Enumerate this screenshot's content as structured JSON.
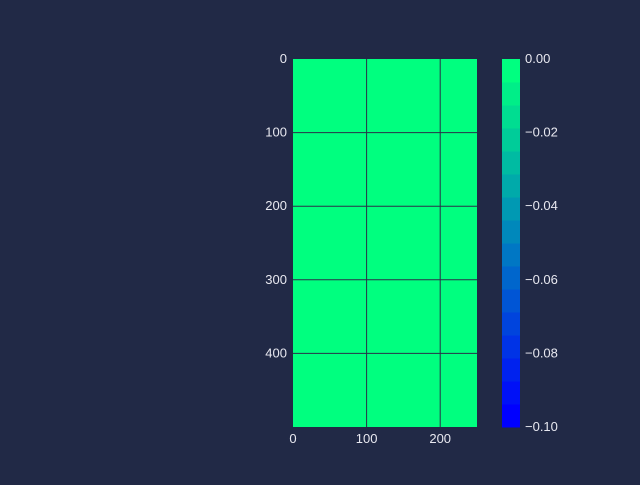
{
  "chart_data": {
    "type": "heatmap",
    "title": "",
    "xlabel": "",
    "ylabel": "",
    "xlim": [
      0,
      250
    ],
    "ylim": [
      0,
      500
    ],
    "y_inverted": true,
    "x_ticks": [
      "0",
      "100",
      "200"
    ],
    "x_tick_values": [
      0,
      100,
      200
    ],
    "y_ticks": [
      "0",
      "100",
      "200",
      "300",
      "400"
    ],
    "y_tick_values": [
      0,
      100,
      200,
      300,
      400
    ],
    "grid": true,
    "values": [
      [
        0.0
      ]
    ],
    "fill_color": "#00ff7f",
    "colorbar": {
      "range": [
        -0.1,
        0.0
      ],
      "levels": 16,
      "colormap": "winter",
      "color_low": "#0000ff",
      "color_high": "#00ff80",
      "ticks": [
        "0.00",
        "−0.02",
        "−0.04",
        "−0.06",
        "−0.08",
        "−0.10"
      ],
      "tick_values": [
        0.0,
        -0.02,
        -0.04,
        -0.06,
        -0.08,
        -0.1
      ]
    }
  },
  "colors": {
    "background": "#212946",
    "text": "#e8e8f0",
    "grid": "#2a3048"
  }
}
